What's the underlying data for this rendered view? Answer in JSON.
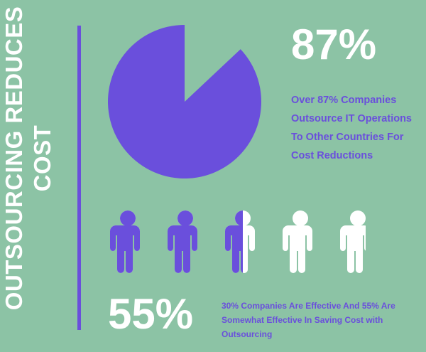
{
  "title": {
    "line1": "OUTSOURCING REDUCES",
    "line2": "COST"
  },
  "colors": {
    "background": "#8cc3a5",
    "accent": "#6a4fdc",
    "white": "#ffffff"
  },
  "top_stat": {
    "value": "87%",
    "description": "Over 87% Companies Outsource IT Operations To Other Countries For Cost Reductions"
  },
  "bottom_stat": {
    "value": "55%",
    "description": "30% Companies Are Effective And 55% Are Somewhat Effective In Saving Cost with Outsourcing"
  },
  "chart_data": [
    {
      "type": "pie",
      "title": "",
      "slices": [
        {
          "value": 87,
          "color": "#6a4fdc"
        },
        {
          "value": 13,
          "color": "#8cc3a5"
        }
      ]
    },
    {
      "type": "pictogram",
      "icon": "person-icon",
      "total": 5,
      "filled_fractions": [
        1,
        1,
        0.5,
        0,
        0
      ],
      "filled_color": "#6a4fdc",
      "empty_color": "#ffffff"
    }
  ]
}
